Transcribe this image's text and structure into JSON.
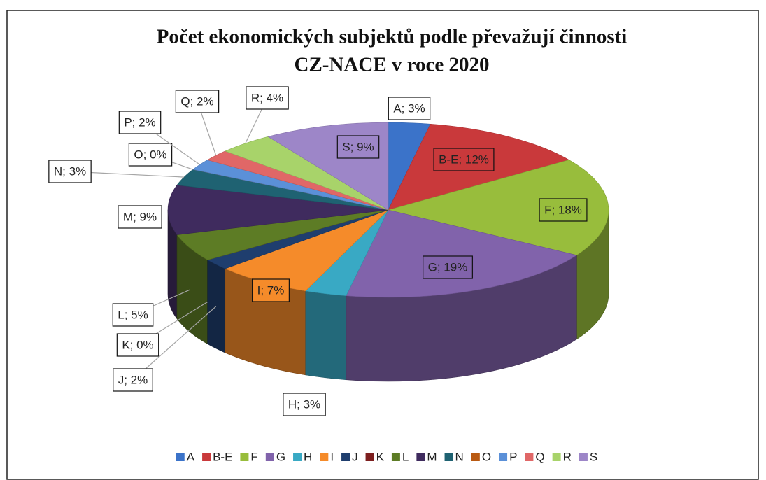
{
  "chart_data": {
    "type": "pie3d",
    "title": "Počet ekonomických subjektů podle převažují činnosti",
    "subtitle": "CZ-NACE v roce 2020",
    "categories": [
      "A",
      "B-E",
      "F",
      "G",
      "H",
      "I",
      "J",
      "K",
      "L",
      "M",
      "N",
      "O",
      "P",
      "Q",
      "R",
      "S"
    ],
    "values": [
      3,
      12,
      18,
      19,
      3,
      7,
      2,
      0,
      5,
      9,
      3,
      0,
      2,
      2,
      4,
      9
    ],
    "value_labels": [
      "A; 3%",
      "B-E; 12%",
      "F; 18%",
      "G; 19%",
      "H; 3%",
      "I; 7%",
      "J; 2%",
      "K; 0%",
      "L; 5%",
      "M; 9%",
      "N; 3%",
      "O; 0%",
      "P; 2%",
      "Q; 2%",
      "R; 4%",
      "S; 9%"
    ],
    "colors": [
      "#3b73c9",
      "#c9393b",
      "#98bd3c",
      "#8163ab",
      "#39a9c4",
      "#f58b2a",
      "#1f3e6e",
      "#7d1f1f",
      "#5d7c25",
      "#3f2b5e",
      "#1f6272",
      "#b95a12",
      "#5b90d8",
      "#e06767",
      "#a8d36a",
      "#9d86c8"
    ],
    "legend": "bottom"
  }
}
